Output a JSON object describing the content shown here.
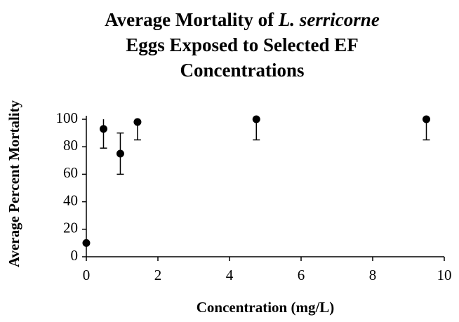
{
  "chart_data": {
    "type": "scatter",
    "title": [
      "Average Mortality of",
      "L. serricorne",
      "Eggs Exposed to Selected EF",
      "Concentrations"
    ],
    "xlabel": "Concentration (mg/L)",
    "ylabel": "Average Percent Mortality",
    "x": [
      0,
      0.48,
      0.95,
      1.43,
      4.75,
      9.5
    ],
    "series": [
      {
        "color": "#000000",
        "values": [
          10,
          93,
          75,
          98,
          100,
          100
        ],
        "error": [
          0,
          14,
          15,
          13,
          15,
          15
        ]
      }
    ],
    "xlim": [
      0,
      10
    ],
    "xticks": [
      0,
      2,
      4,
      6,
      8,
      10
    ],
    "ylim": [
      0,
      100
    ],
    "yticks": [
      0,
      20,
      40,
      60,
      80,
      100
    ]
  }
}
